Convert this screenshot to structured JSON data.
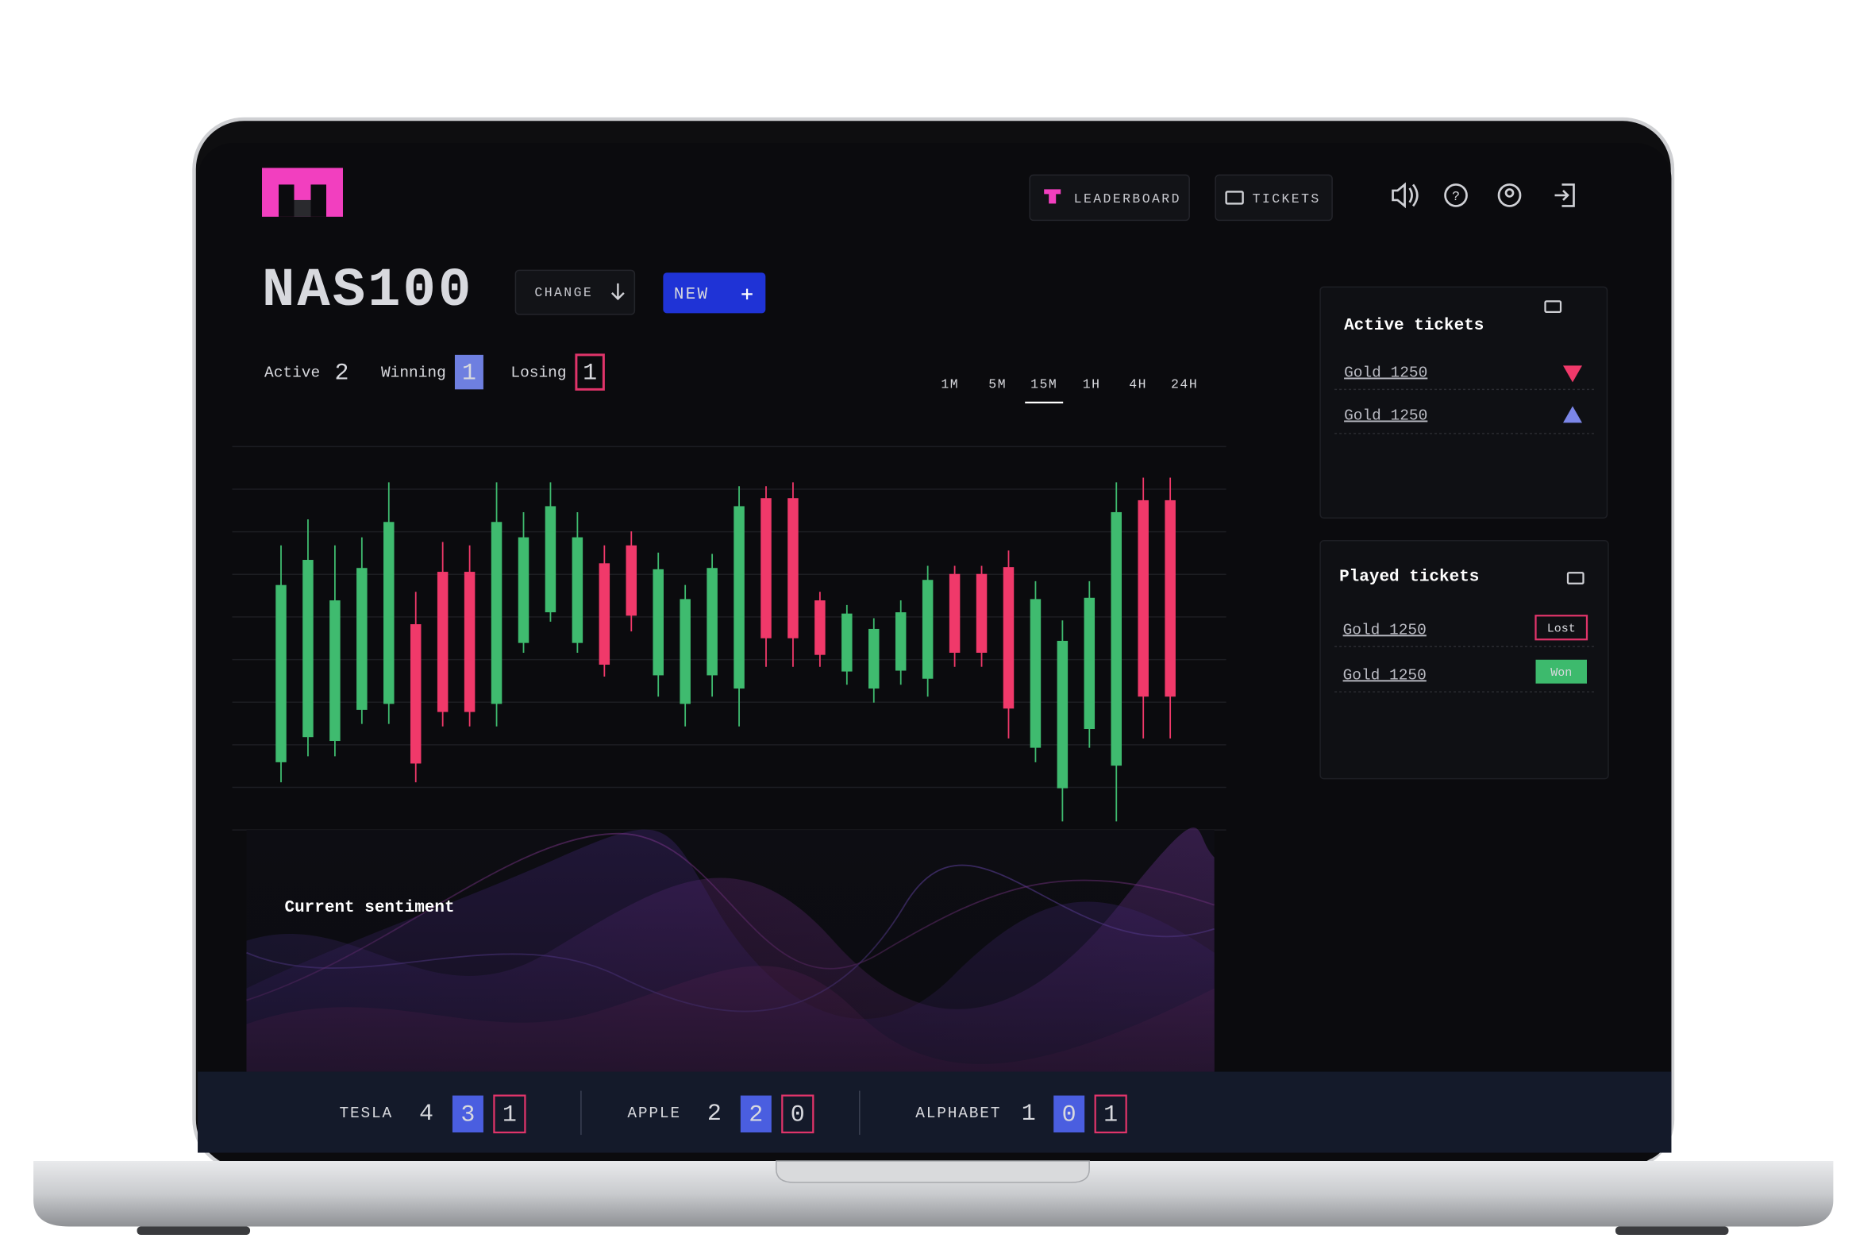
{
  "header": {
    "nav": [
      "LEADERBOARD",
      "TICKETS"
    ]
  },
  "market": {
    "symbol": "NAS100",
    "change_button": "CHANGE",
    "new_button": "NEW",
    "stats": [
      {
        "label": "Active",
        "value": 2
      },
      {
        "label": "Winning",
        "value": 1
      },
      {
        "label": "Losing",
        "value": 1
      }
    ],
    "timeframes": [
      "1M",
      "5M",
      "15M",
      "1H",
      "4H",
      "24H"
    ],
    "selected_timeframe": "15M"
  },
  "chart": {
    "type": "candlestick",
    "up_color": "#3fbb6f",
    "down_color": "#f0396a",
    "ylim": [
      0,
      9
    ],
    "yticks": [
      0,
      1,
      2,
      3,
      4,
      5,
      6,
      7,
      8,
      9
    ],
    "grid": true,
    "candles": [
      {
        "o": 1.59,
        "h": 6.68,
        "l": 1.12,
        "c": 5.75
      },
      {
        "o": 2.18,
        "h": 7.29,
        "l": 1.73,
        "c": 6.34
      },
      {
        "o": 2.09,
        "h": 6.68,
        "l": 1.73,
        "c": 5.39
      },
      {
        "o": 2.82,
        "h": 6.87,
        "l": 2.49,
        "c": 6.15
      },
      {
        "o": 2.96,
        "h": 8.16,
        "l": 2.49,
        "c": 7.23
      },
      {
        "o": 4.83,
        "h": 5.59,
        "l": 1.12,
        "c": 1.56
      },
      {
        "o": 6.06,
        "h": 6.76,
        "l": 2.43,
        "c": 2.77
      },
      {
        "o": 6.06,
        "h": 6.68,
        "l": 2.43,
        "c": 2.77
      },
      {
        "o": 2.96,
        "h": 8.16,
        "l": 2.43,
        "c": 7.23
      },
      {
        "o": 4.39,
        "h": 7.46,
        "l": 4.16,
        "c": 6.87
      },
      {
        "o": 5.11,
        "h": 8.16,
        "l": 4.89,
        "c": 7.6
      },
      {
        "o": 4.39,
        "h": 7.46,
        "l": 4.16,
        "c": 6.87
      },
      {
        "o": 6.26,
        "h": 6.68,
        "l": 3.6,
        "c": 3.88
      },
      {
        "o": 6.68,
        "h": 7.01,
        "l": 4.66,
        "c": 5.03
      },
      {
        "o": 3.63,
        "h": 6.51,
        "l": 3.13,
        "c": 6.12
      },
      {
        "o": 2.96,
        "h": 5.75,
        "l": 2.43,
        "c": 5.42
      },
      {
        "o": 3.63,
        "h": 6.48,
        "l": 3.13,
        "c": 6.15
      },
      {
        "o": 3.32,
        "h": 8.07,
        "l": 2.43,
        "c": 7.6
      },
      {
        "o": 7.79,
        "h": 8.07,
        "l": 3.83,
        "c": 4.5
      },
      {
        "o": 7.79,
        "h": 8.16,
        "l": 3.83,
        "c": 4.5
      },
      {
        "o": 5.39,
        "h": 5.59,
        "l": 3.83,
        "c": 4.11
      },
      {
        "o": 3.72,
        "h": 5.28,
        "l": 3.41,
        "c": 5.08
      },
      {
        "o": 3.32,
        "h": 4.97,
        "l": 2.99,
        "c": 4.72
      },
      {
        "o": 3.74,
        "h": 5.39,
        "l": 3.41,
        "c": 5.11
      },
      {
        "o": 3.55,
        "h": 6.2,
        "l": 3.13,
        "c": 5.87
      },
      {
        "o": 6.01,
        "h": 6.2,
        "l": 3.83,
        "c": 4.16
      },
      {
        "o": 6.01,
        "h": 6.2,
        "l": 3.83,
        "c": 4.16
      },
      {
        "o": 6.17,
        "h": 6.56,
        "l": 2.15,
        "c": 2.85
      },
      {
        "o": 1.93,
        "h": 5.84,
        "l": 1.59,
        "c": 5.42
      },
      {
        "o": 0.98,
        "h": 4.92,
        "l": 0.2,
        "c": 4.44
      },
      {
        "o": 2.37,
        "h": 5.84,
        "l": 1.93,
        "c": 5.45
      },
      {
        "o": 1.51,
        "h": 8.16,
        "l": 0.2,
        "c": 7.46
      },
      {
        "o": 7.74,
        "h": 8.27,
        "l": 2.15,
        "c": 3.13
      },
      {
        "o": 7.74,
        "h": 8.27,
        "l": 2.15,
        "c": 3.13
      }
    ]
  },
  "sentiment": {
    "title": "Current sentiment"
  },
  "active_tickets": {
    "title": "Active tickets",
    "items": [
      {
        "label": "Gold 1250",
        "direction": "down"
      },
      {
        "label": "Gold 1250",
        "direction": "up"
      }
    ]
  },
  "played_tickets": {
    "title": "Played tickets",
    "items": [
      {
        "label": "Gold 1250",
        "result": "Lost"
      },
      {
        "label": "Gold 1250",
        "result": "Won"
      }
    ]
  },
  "tickers": [
    {
      "name": "TESLA",
      "total": 4,
      "winning": 3,
      "losing": 1
    },
    {
      "name": "APPLE",
      "total": 2,
      "winning": 2,
      "losing": 0
    },
    {
      "name": "ALPHABET",
      "total": 1,
      "winning": 0,
      "losing": 1
    }
  ]
}
